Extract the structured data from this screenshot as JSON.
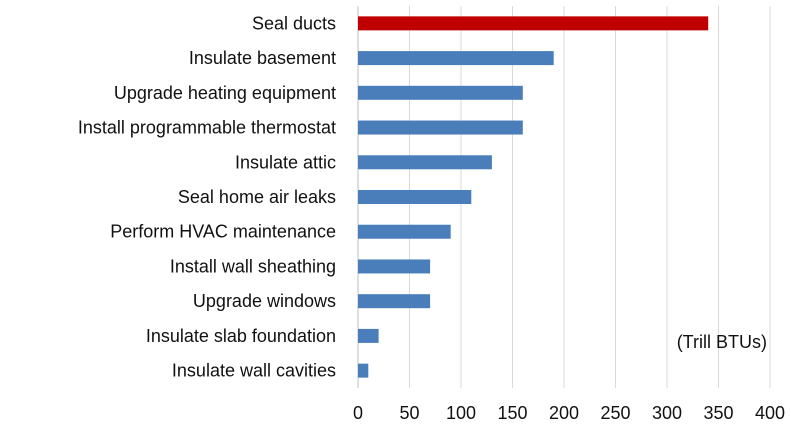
{
  "chart_data": {
    "type": "bar",
    "orientation": "horizontal",
    "categories": [
      "Seal ducts",
      "Insulate basement",
      "Upgrade heating equipment",
      "Install programmable thermostat",
      "Insulate attic",
      "Seal home air leaks",
      "Perform HVAC maintenance",
      "Install wall sheathing",
      "Upgrade windows",
      "Insulate slab foundation",
      "Insulate wall cavities"
    ],
    "values": [
      340,
      190,
      160,
      160,
      130,
      110,
      90,
      70,
      70,
      20,
      10
    ],
    "highlight_index": 0,
    "colors": {
      "bar": "#4a7ebb",
      "highlight": "#c00000",
      "grid": "#d9d9d9"
    },
    "xlim": [
      0,
      400
    ],
    "xticks": [
      0,
      50,
      100,
      150,
      200,
      250,
      300,
      350,
      400
    ],
    "unit_annotation": "(Trill BTUs)",
    "grid": true,
    "title": "",
    "xlabel": "",
    "ylabel": ""
  }
}
